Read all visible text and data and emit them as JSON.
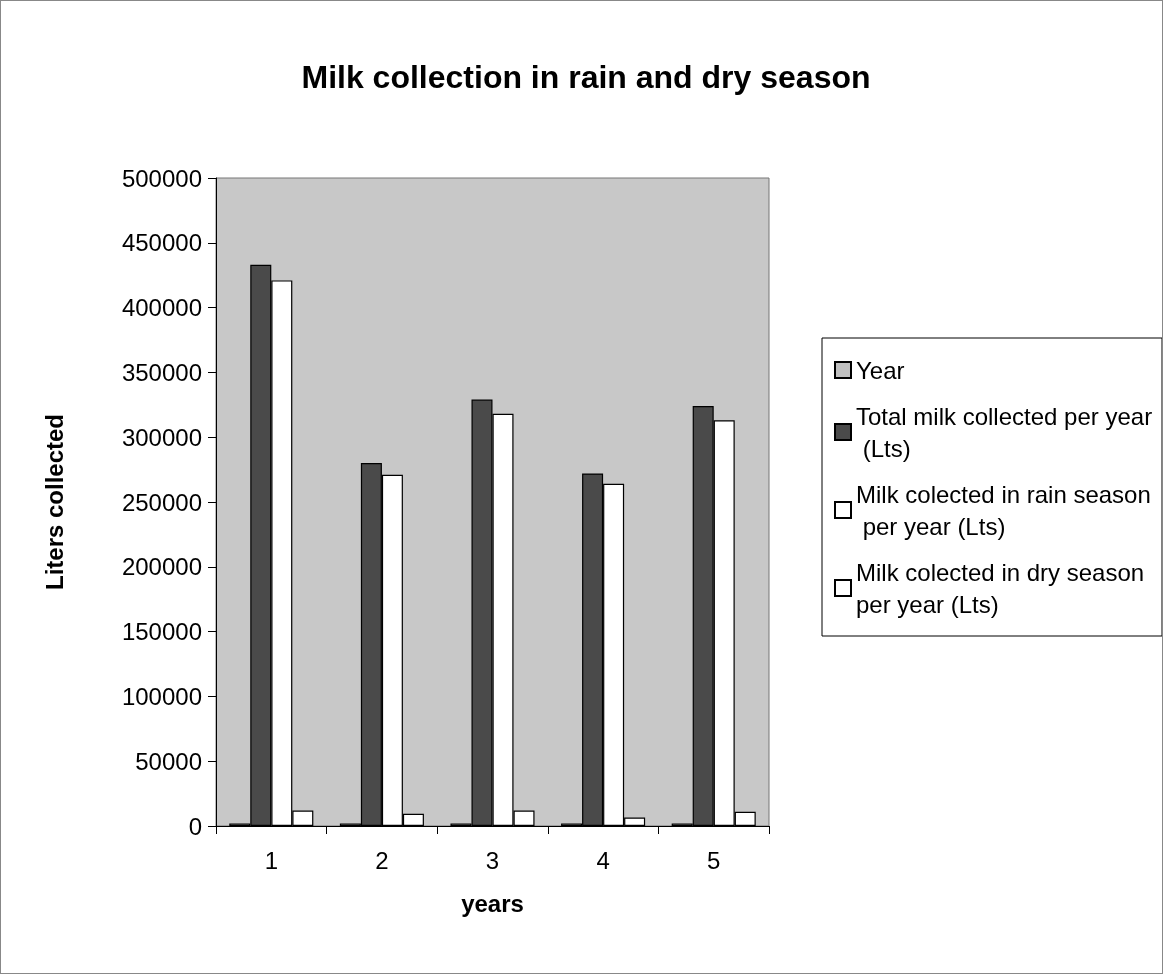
{
  "chart_data": {
    "type": "bar",
    "title": "Milk collection in rain and dry season",
    "xlabel": "years",
    "ylabel": "Liters collected",
    "categories": [
      "1",
      "2",
      "3",
      "4",
      "5"
    ],
    "series": [
      {
        "name": "Year",
        "color": "#c0c0c0",
        "values": [
          2000,
          2000,
          2000,
          2000,
          2000
        ]
      },
      {
        "name": "Total milk collected per year (Lts)",
        "color": "#4a4a4a",
        "values": [
          433000,
          280000,
          329000,
          272000,
          324000
        ]
      },
      {
        "name": "Milk colected in rain season per year (Lts)",
        "color": "#ffffff",
        "values": [
          421000,
          271000,
          318000,
          264000,
          313000
        ]
      },
      {
        "name": "Milk colected in dry season per year (Lts)",
        "color": "#ffffff",
        "values": [
          12000,
          9500,
          12000,
          6500,
          11000
        ]
      }
    ],
    "ylim": [
      0,
      500000
    ],
    "yticks": [
      0,
      50000,
      100000,
      150000,
      200000,
      250000,
      300000,
      350000,
      400000,
      450000,
      500000
    ],
    "grid": false,
    "legend": "right"
  }
}
